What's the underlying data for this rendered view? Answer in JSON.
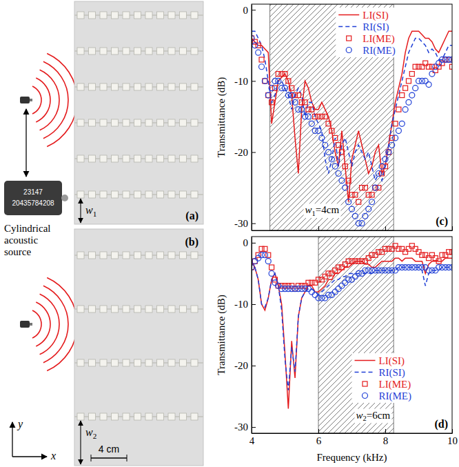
{
  "figure": {
    "panel_a": "(a)",
    "panel_b": "(b)",
    "width_a": "w1",
    "width_b": "w2",
    "scale_bar": "4 cm",
    "source_label": "Cylindrical acoustic source",
    "source_device_text": [
      "23147",
      "20435784208"
    ],
    "axis_x": "x",
    "axis_y": "y"
  },
  "chart_data": [
    {
      "type": "line",
      "panel": "(c)",
      "annotation": "w1=4cm",
      "y_label": "Transmittance (dB)",
      "xlim": [
        4,
        10
      ],
      "xticks": [
        4,
        6,
        8,
        10
      ],
      "ylim": [
        -31,
        0.8
      ],
      "yticks": [
        0,
        -10,
        -20,
        -30
      ],
      "tick_labels": "y",
      "legend": "top",
      "shaded_region": [
        4.55,
        8.25
      ],
      "x": [
        4,
        4.1,
        4.2,
        4.3,
        4.4,
        4.5,
        4.6,
        4.7,
        4.8,
        4.9,
        5,
        5.1,
        5.2,
        5.3,
        5.4,
        5.5,
        5.6,
        5.7,
        5.8,
        5.9,
        6,
        6.1,
        6.2,
        6.3,
        6.4,
        6.5,
        6.6,
        6.7,
        6.8,
        6.9,
        7,
        7.1,
        7.2,
        7.3,
        7.4,
        7.5,
        7.6,
        7.7,
        7.8,
        7.9,
        8,
        8.1,
        8.2,
        8.3,
        8.4,
        8.5,
        8.6,
        8.7,
        8.8,
        8.9,
        9,
        9.1,
        9.2,
        9.3,
        9.4,
        9.5,
        9.6,
        9.7,
        9.8,
        9.9,
        10
      ],
      "series": [
        {
          "name": "LI(SI)",
          "type": "line",
          "color": "#e41a1c",
          "line_style": "solid",
          "values": [
            -4,
            -4.5,
            -5,
            -5,
            -5.5,
            -6,
            -16,
            -13,
            -10,
            -9.5,
            -9,
            -10,
            -12,
            -18,
            -23,
            -14,
            -10,
            -11,
            -13,
            -14,
            -14,
            -13,
            -14,
            -15,
            -17,
            -20,
            -22,
            -17,
            -22,
            -27,
            -21,
            -19,
            -17,
            -19,
            -21,
            -23,
            -22,
            -20,
            -19,
            -23,
            -22,
            -19,
            -16,
            -13,
            -11,
            -9,
            -6,
            -4,
            -3,
            -3,
            -3,
            -3.5,
            -4,
            -4,
            -4.5,
            -5.5,
            -6,
            -5,
            -4,
            -3,
            -3
          ]
        },
        {
          "name": "RI(SI)",
          "type": "line",
          "color": "#1f3fd6",
          "line_style": "dashed",
          "values": [
            -3,
            -3,
            -4,
            -5,
            -7,
            -10,
            -13,
            -12,
            -10,
            -10,
            -11,
            -12,
            -14,
            -12,
            -11,
            -12,
            -15,
            -13,
            -13,
            -15,
            -16,
            -17,
            -21,
            -23,
            -21,
            -18,
            -22,
            -19,
            -18,
            -20,
            -22,
            -20,
            -19,
            -20,
            -21,
            -20,
            -22,
            -24,
            -23,
            -24,
            -22,
            -19,
            -16,
            -14,
            -12,
            -10,
            -8,
            -6,
            -5,
            -4,
            -4,
            -4.5,
            -5,
            -6,
            -5.5,
            -6,
            -7,
            -7,
            -6,
            -5,
            -5
          ]
        },
        {
          "name": "LI(ME)",
          "type": "scatter",
          "color": "#e41a1c",
          "marker": "square",
          "values": [
            -4,
            -4.5,
            -5,
            -7,
            -10,
            -12,
            -13,
            -11,
            -9,
            -9,
            -9,
            -10,
            -11,
            -12,
            -12,
            -13,
            -13,
            -14,
            -14,
            -15,
            -15,
            -15,
            -15,
            -16,
            -17,
            -18,
            -19,
            -20,
            -22,
            -24,
            -26,
            -26,
            -27,
            -25,
            -25,
            -26,
            -26,
            -25,
            -25,
            -23,
            -22,
            -20,
            -18,
            -16,
            -14,
            -12,
            -11,
            -10,
            -9,
            -8,
            -8,
            -8,
            -7.5,
            -8,
            -8,
            -8.5,
            -8,
            -7.5,
            -7,
            -7,
            -8
          ]
        },
        {
          "name": "RI(ME)",
          "type": "scatter",
          "color": "#1f3fd6",
          "marker": "circle",
          "values": [
            -4,
            -5,
            -6,
            -8,
            -10,
            -12,
            -11,
            -10,
            -10,
            -11,
            -11,
            -12,
            -12,
            -13,
            -14,
            -14,
            -15,
            -15,
            -16,
            -17,
            -17,
            -18,
            -19,
            -20,
            -21,
            -22,
            -23,
            -24,
            -25,
            -27,
            -28,
            -29,
            -30,
            -30,
            -29,
            -28,
            -27,
            -25,
            -23,
            -22,
            -21,
            -20,
            -19,
            -18,
            -17,
            -16,
            -14,
            -13,
            -12,
            -11,
            -10,
            -10,
            -10,
            -10.5,
            -9,
            -8,
            -7.5,
            -7,
            -7,
            -7,
            -7
          ]
        }
      ]
    },
    {
      "type": "line",
      "panel": "(d)",
      "annotation": "w2=6cm",
      "y_label": "Transmittance (dB)",
      "x_label": "Frequency (kHz)",
      "xlim": [
        4,
        10
      ],
      "xticks": [
        4,
        6,
        8,
        10
      ],
      "ylim": [
        -31,
        1
      ],
      "yticks": [
        0,
        -10,
        -20,
        -30
      ],
      "legend": "bottom",
      "shaded_region": [
        6,
        8.25
      ],
      "x": [
        4,
        4.1,
        4.2,
        4.3,
        4.4,
        4.5,
        4.6,
        4.7,
        4.8,
        4.9,
        5,
        5.1,
        5.2,
        5.3,
        5.4,
        5.5,
        5.6,
        5.7,
        5.8,
        5.9,
        6,
        6.1,
        6.2,
        6.3,
        6.4,
        6.5,
        6.6,
        6.7,
        6.8,
        6.9,
        7,
        7.1,
        7.2,
        7.3,
        7.4,
        7.5,
        7.6,
        7.7,
        7.8,
        7.9,
        8,
        8.1,
        8.2,
        8.3,
        8.4,
        8.5,
        8.6,
        8.7,
        8.8,
        8.9,
        9,
        9.1,
        9.2,
        9.3,
        9.4,
        9.5,
        9.6,
        9.7,
        9.8,
        9.9,
        10
      ],
      "series": [
        {
          "name": "LI(SI)",
          "type": "line",
          "color": "#e41a1c",
          "line_style": "solid",
          "values": [
            -3,
            -4,
            -6,
            -10,
            -11,
            -9,
            -6,
            -5,
            -7,
            -10,
            -18,
            -27,
            -16,
            -22,
            -12,
            -9,
            -8,
            -7,
            -7,
            -8,
            -8,
            -7.5,
            -7,
            -6,
            -6,
            -5,
            -5,
            -4.5,
            -4,
            -4,
            -3.5,
            -3,
            -3,
            -3,
            -3.5,
            -3.5,
            -4,
            -4,
            -3.5,
            -3,
            -3,
            -3,
            -3,
            -2.5,
            -2.5,
            -3,
            -2.5,
            -2.5,
            -2.5,
            -3,
            -3,
            -3,
            -5,
            -3.5,
            -3,
            -3,
            -3,
            -3,
            -2.5,
            -2.5,
            -2.5
          ]
        },
        {
          "name": "RI(SI)",
          "type": "line",
          "color": "#1f3fd6",
          "line_style": "dashed",
          "values": [
            -3,
            -4,
            -6,
            -10,
            -10.5,
            -9,
            -6,
            -5,
            -7,
            -11,
            -19,
            -24,
            -17,
            -21,
            -12,
            -9,
            -8,
            -7.5,
            -7.5,
            -8,
            -8.5,
            -8,
            -7.5,
            -7,
            -6.5,
            -6,
            -6,
            -5.5,
            -5.5,
            -5,
            -5,
            -5,
            -5,
            -5,
            -5,
            -5,
            -5,
            -4.5,
            -4.5,
            -4.5,
            -4.5,
            -4.5,
            -4.5,
            -4.5,
            -4,
            -4,
            -4,
            -4,
            -4,
            -4,
            -4,
            -4.5,
            -7,
            -5,
            -4.5,
            -4.5,
            -4.5,
            -4,
            -4,
            -4,
            -4
          ]
        },
        {
          "name": "LI(ME)",
          "type": "scatter",
          "color": "#e41a1c",
          "marker": "square",
          "values": [
            -4,
            -3,
            -2,
            -1,
            -1,
            -2,
            -4,
            -6,
            -7,
            -7,
            -7,
            -7,
            -7,
            -7.5,
            -7,
            -7,
            -7,
            -6.5,
            -6.5,
            -6.5,
            -6,
            -6,
            -5.5,
            -5,
            -5,
            -4.5,
            -4,
            -4,
            -3.5,
            -3,
            -3,
            -3,
            -3,
            -3,
            -3,
            -2.5,
            -2,
            -2,
            -1.5,
            -1.5,
            -1,
            -1,
            -1,
            -0.5,
            -1,
            -1,
            -1.5,
            -1,
            -0.5,
            -1,
            -1.5,
            -2,
            -2,
            -2.5,
            -2,
            -2.5,
            -3,
            -2,
            -2,
            -1.5,
            -1.5
          ]
        },
        {
          "name": "RI(ME)",
          "type": "scatter",
          "color": "#1f3fd6",
          "marker": "circle",
          "values": [
            -4,
            -3,
            -2.5,
            -2,
            -2,
            -3,
            -5,
            -6.5,
            -7,
            -7.5,
            -7.5,
            -7.5,
            -7.5,
            -7.5,
            -7.5,
            -7.5,
            -7.5,
            -7.5,
            -8,
            -8.5,
            -9,
            -9,
            -9,
            -8.5,
            -8.5,
            -8,
            -7.5,
            -7,
            -6.5,
            -6,
            -6,
            -5.5,
            -5,
            -5,
            -4.5,
            -4.5,
            -4.5,
            -4.5,
            -4.5,
            -4.5,
            -4.5,
            -4.5,
            -4.5,
            -4.5,
            -4,
            -4,
            -4,
            -4,
            -4,
            -4,
            -4,
            -4,
            -4,
            -4.5,
            -4.5,
            -4.5,
            -4,
            -4,
            -4,
            -4,
            -4
          ]
        }
      ]
    }
  ]
}
